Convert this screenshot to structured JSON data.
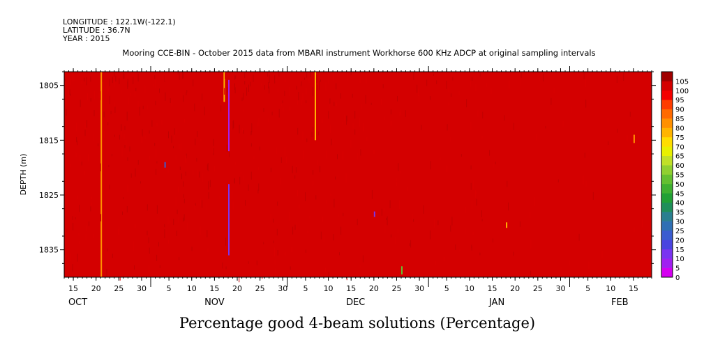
{
  "header": {
    "longitude": "LONGITUDE : 122.1W(-122.1)",
    "latitude": "LATITUDE : 36.7N",
    "year": "YEAR : 2015"
  },
  "subtitle": "Mooring CCE-BIN - October 2015 data from MBARI instrument Workhorse 600 KHz ADCP at original sampling intervals",
  "caption": "Percentage good 4-beam solutions (Percentage)",
  "chart_data": {
    "type": "heatmap",
    "title": "Percentage good 4-beam solutions (Percentage)",
    "ylabel": "DEPTH (m)",
    "y_ticks": [
      1805,
      1815,
      1825,
      1835
    ],
    "ylim": [
      1840,
      1802.5
    ],
    "x_start": "2015-10-13",
    "x_end": "2016-02-19",
    "x_tick_labels": [
      {
        "date": "2015-10-15",
        "label": "15"
      },
      {
        "date": "2015-10-20",
        "label": "20"
      },
      {
        "date": "2015-10-25",
        "label": "25"
      },
      {
        "date": "2015-10-30",
        "label": "30"
      },
      {
        "date": "2015-11-05",
        "label": "5"
      },
      {
        "date": "2015-11-10",
        "label": "10"
      },
      {
        "date": "2015-11-15",
        "label": "15"
      },
      {
        "date": "2015-11-20",
        "label": "20"
      },
      {
        "date": "2015-11-25",
        "label": "25"
      },
      {
        "date": "2015-11-30",
        "label": "30"
      },
      {
        "date": "2015-12-05",
        "label": "5"
      },
      {
        "date": "2015-12-10",
        "label": "10"
      },
      {
        "date": "2015-12-15",
        "label": "15"
      },
      {
        "date": "2015-12-20",
        "label": "20"
      },
      {
        "date": "2015-12-25",
        "label": "25"
      },
      {
        "date": "2015-12-30",
        "label": "30"
      },
      {
        "date": "2016-01-05",
        "label": "5"
      },
      {
        "date": "2016-01-10",
        "label": "10"
      },
      {
        "date": "2016-01-15",
        "label": "15"
      },
      {
        "date": "2016-01-20",
        "label": "20"
      },
      {
        "date": "2016-01-25",
        "label": "25"
      },
      {
        "date": "2016-01-30",
        "label": "30"
      },
      {
        "date": "2016-02-05",
        "label": "5"
      },
      {
        "date": "2016-02-10",
        "label": "10"
      },
      {
        "date": "2016-02-15",
        "label": "15"
      }
    ],
    "month_labels": [
      {
        "date": "2015-10-16",
        "label": "OCT"
      },
      {
        "date": "2015-11-15",
        "label": "NOV"
      },
      {
        "date": "2015-12-16",
        "label": "DEC"
      },
      {
        "date": "2016-01-16",
        "label": "JAN"
      },
      {
        "date": "2016-02-12",
        "label": "FEB"
      }
    ],
    "month_boundaries": [
      "2015-11-01",
      "2015-12-01",
      "2016-01-01",
      "2016-02-01"
    ],
    "background_value": 100,
    "anomalies": [
      {
        "date": "2015-10-21",
        "depth_top": 1802.5,
        "depth_bottom": 1840,
        "value": 80
      },
      {
        "date": "2015-11-17",
        "depth_top": 1802.5,
        "depth_bottom": 1808,
        "value": 75
      },
      {
        "date": "2015-11-18",
        "depth_top": 1804,
        "depth_bottom": 1817,
        "value": 5
      },
      {
        "date": "2015-11-18",
        "depth_top": 1823,
        "depth_bottom": 1836,
        "value": 10
      },
      {
        "date": "2015-12-07",
        "depth_top": 1802.5,
        "depth_bottom": 1815,
        "value": 75
      },
      {
        "date": "2015-11-04",
        "depth_top": 1819,
        "depth_bottom": 1820,
        "value": 20
      },
      {
        "date": "2015-12-20",
        "depth_top": 1828,
        "depth_bottom": 1829,
        "value": 10
      },
      {
        "date": "2015-12-26",
        "depth_top": 1838,
        "depth_bottom": 1839.5,
        "value": 50
      },
      {
        "date": "2016-01-18",
        "depth_top": 1830,
        "depth_bottom": 1831,
        "value": 75
      },
      {
        "date": "2016-02-15",
        "depth_top": 1814,
        "depth_bottom": 1815.5,
        "value": 80
      }
    ],
    "colorbar": {
      "min": 0,
      "max": 105,
      "step": 5,
      "labels": [
        "105",
        "100",
        "95",
        "90",
        "85",
        "80",
        "75",
        "70",
        "65",
        "60",
        "55",
        "50",
        "45",
        "40",
        "35",
        "30",
        "25",
        "20",
        "15",
        "10",
        "5",
        "0"
      ],
      "colors": [
        "#d400f0",
        "#a020f0",
        "#7a34f0",
        "#4a44e0",
        "#3a5cd0",
        "#2f6fb4",
        "#2a7f90",
        "#1f8f5a",
        "#21a035",
        "#3fb030",
        "#64c030",
        "#90d030",
        "#c0e028",
        "#e8f000",
        "#ffdd00",
        "#ffb400",
        "#ff9000",
        "#ff6a00",
        "#ff3c00",
        "#f40000",
        "#d40000",
        "#a00000"
      ]
    }
  }
}
